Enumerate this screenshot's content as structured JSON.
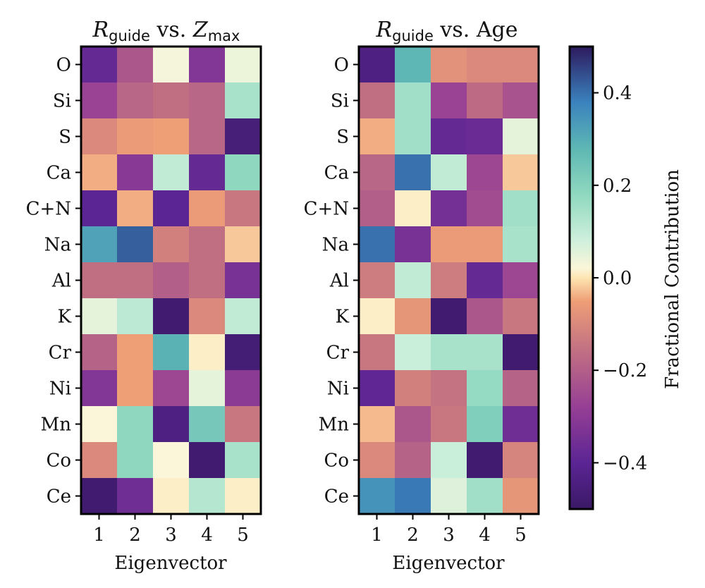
{
  "chart_data": [
    {
      "type": "heatmap",
      "title": {
        "symbol": "R",
        "symbol_sub": "guide",
        "mid": " vs. ",
        "target_symbol": "Z",
        "target_sub": "max"
      },
      "xlabel": "Eigenvector",
      "x_categories": [
        "1",
        "2",
        "3",
        "4",
        "5"
      ],
      "y_categories": [
        "O",
        "Si",
        "S",
        "Ca",
        "C+N",
        "Na",
        "Al",
        "K",
        "Cr",
        "Ni",
        "Mn",
        "Co",
        "Ce"
      ],
      "values": [
        [
          -0.38,
          -0.22,
          0.03,
          -0.32,
          0.04
        ],
        [
          -0.27,
          -0.18,
          -0.16,
          -0.18,
          0.14
        ],
        [
          -0.1,
          -0.06,
          -0.05,
          -0.18,
          -0.46
        ],
        [
          -0.04,
          -0.31,
          0.1,
          -0.38,
          0.18
        ],
        [
          -0.4,
          -0.04,
          -0.4,
          -0.06,
          -0.14
        ],
        [
          0.32,
          0.42,
          -0.12,
          -0.16,
          -0.02
        ],
        [
          -0.16,
          -0.16,
          -0.2,
          -0.16,
          -0.34
        ],
        [
          0.05,
          0.11,
          -0.48,
          -0.1,
          0.1
        ],
        [
          -0.19,
          -0.05,
          0.29,
          0.01,
          -0.47
        ],
        [
          -0.32,
          -0.05,
          -0.26,
          0.05,
          -0.3
        ],
        [
          0.02,
          0.18,
          -0.44,
          0.23,
          -0.14
        ],
        [
          -0.1,
          0.18,
          0.02,
          -0.48,
          0.14
        ],
        [
          -0.48,
          -0.36,
          0.01,
          0.12,
          0.01
        ]
      ]
    },
    {
      "type": "heatmap",
      "title": {
        "symbol": "R",
        "symbol_sub": "guide",
        "mid": " vs. Age"
      },
      "xlabel": "Eigenvector",
      "x_categories": [
        "1",
        "2",
        "3",
        "4",
        "5"
      ],
      "y_categories": [
        "O",
        "Si",
        "S",
        "Ca",
        "C+N",
        "Na",
        "Al",
        "K",
        "Cr",
        "Ni",
        "Mn",
        "Co",
        "Ce"
      ],
      "values": [
        [
          -0.44,
          0.28,
          -0.08,
          -0.1,
          -0.1
        ],
        [
          -0.16,
          0.15,
          -0.27,
          -0.17,
          -0.23
        ],
        [
          -0.04,
          0.15,
          -0.38,
          -0.37,
          0.05
        ],
        [
          -0.18,
          0.4,
          0.1,
          -0.26,
          -0.02
        ],
        [
          -0.2,
          0.01,
          -0.35,
          -0.25,
          0.15
        ],
        [
          0.4,
          -0.34,
          -0.06,
          -0.06,
          0.14
        ],
        [
          -0.13,
          0.1,
          -0.13,
          -0.38,
          -0.26
        ],
        [
          0.01,
          -0.07,
          -0.48,
          -0.22,
          -0.14
        ],
        [
          -0.14,
          0.09,
          0.14,
          0.14,
          -0.48
        ],
        [
          -0.39,
          -0.12,
          -0.15,
          0.17,
          -0.19
        ],
        [
          -0.03,
          -0.22,
          -0.14,
          0.21,
          -0.36
        ],
        [
          -0.1,
          -0.19,
          0.09,
          -0.48,
          -0.11
        ],
        [
          0.35,
          0.39,
          0.06,
          0.15,
          -0.07
        ]
      ]
    }
  ],
  "colorbar": {
    "label": "Fractional Contribution",
    "min": -0.5,
    "max": 0.5,
    "ticks": [
      0.4,
      0.2,
      0.0,
      -0.2,
      -0.4
    ],
    "tick_labels": [
      "0.4",
      "0.2",
      "0.0",
      "−0.2",
      "−0.4"
    ],
    "colormap": "Spectral-like",
    "stops": [
      [
        0.0,
        "#3a1966"
      ],
      [
        0.1,
        "#5b2594"
      ],
      [
        0.22,
        "#963f95"
      ],
      [
        0.35,
        "#c47382"
      ],
      [
        0.45,
        "#ef9f76"
      ],
      [
        0.5,
        "#fde5b2"
      ],
      [
        0.52,
        "#fbf6d9"
      ],
      [
        0.58,
        "#cff0dc"
      ],
      [
        0.68,
        "#8fd8bf"
      ],
      [
        0.78,
        "#5eb7b4"
      ],
      [
        0.88,
        "#3a82be"
      ],
      [
        1.0,
        "#2d1a5e"
      ]
    ]
  }
}
